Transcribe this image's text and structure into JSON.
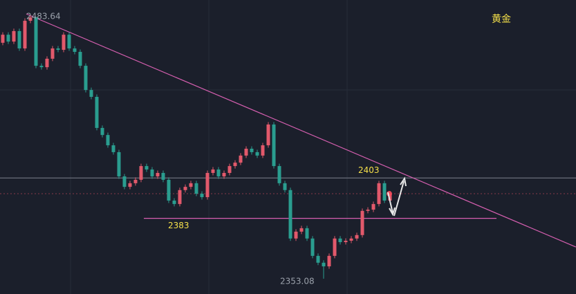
{
  "chart_data": {
    "type": "candlestick",
    "title": "黄金",
    "up_color": "#e2596b",
    "down_color": "#2a9d8f",
    "ylim": [
      2345.5,
      2491.2
    ],
    "open": [
      2470.0,
      2474.0,
      2470.6,
      2475.8,
      2467.2,
      2480.9,
      2482.6,
      2458.6,
      2457.9,
      2462.1,
      2467.2,
      2466.5,
      2474.0,
      2467.2,
      2465.5,
      2458.6,
      2446.6,
      2443.2,
      2427.8,
      2424.3,
      2419.2,
      2415.8,
      2403.8,
      2398.6,
      2400.4,
      2402.1,
      2408.9,
      2407.2,
      2403.8,
      2405.5,
      2402.1,
      2391.8,
      2390.1,
      2397.0,
      2398.6,
      2400.4,
      2395.2,
      2393.5,
      2405.5,
      2407.2,
      2403.8,
      2405.5,
      2408.9,
      2410.6,
      2414.1,
      2417.5,
      2415.8,
      2414.1,
      2419.2,
      2429.5,
      2408.9,
      2400.4,
      2397.0,
      2373.0,
      2376.4,
      2378.1,
      2373.0,
      2364.4,
      2361.0,
      2359.2,
      2364.4,
      2373.0,
      2371.2,
      2371.9,
      2373.0,
      2374.7,
      2386.7,
      2387.3,
      2390.1,
      2400.4,
      2391.8
    ],
    "high": [
      2475.2,
      2475.2,
      2477.0,
      2477.0,
      2482.1,
      2483.64,
      2483.0,
      2459.8,
      2463.3,
      2468.4,
      2468.4,
      2475.2,
      2475.2,
      2468.4,
      2466.7,
      2459.8,
      2447.8,
      2444.4,
      2429.0,
      2425.5,
      2420.4,
      2417.0,
      2405.0,
      2401.6,
      2403.3,
      2410.1,
      2410.1,
      2408.4,
      2406.7,
      2406.7,
      2403.3,
      2393.0,
      2398.2,
      2399.8,
      2401.6,
      2401.6,
      2396.4,
      2406.7,
      2408.4,
      2408.4,
      2406.7,
      2410.1,
      2411.8,
      2415.3,
      2418.7,
      2418.7,
      2417.0,
      2420.4,
      2430.7,
      2430.7,
      2410.1,
      2401.6,
      2398.2,
      2377.6,
      2379.3,
      2379.3,
      2374.2,
      2365.6,
      2362.2,
      2365.6,
      2374.2,
      2374.2,
      2373.1,
      2374.2,
      2375.9,
      2387.9,
      2388.5,
      2391.3,
      2401.6,
      2401.6,
      2396.4
    ],
    "low": [
      2468.8,
      2469.4,
      2469.4,
      2466.0,
      2466.0,
      2479.7,
      2457.4,
      2456.7,
      2456.7,
      2460.9,
      2465.3,
      2465.3,
      2466.0,
      2464.3,
      2457.4,
      2445.4,
      2442.0,
      2426.6,
      2423.1,
      2418.0,
      2414.6,
      2402.6,
      2397.4,
      2397.4,
      2399.2,
      2400.9,
      2406.0,
      2402.6,
      2402.6,
      2400.9,
      2390.6,
      2388.9,
      2388.9,
      2395.8,
      2397.4,
      2394.0,
      2392.3,
      2392.3,
      2404.3,
      2402.6,
      2402.6,
      2404.3,
      2407.7,
      2409.4,
      2412.9,
      2414.6,
      2412.9,
      2412.9,
      2418.0,
      2407.7,
      2399.2,
      2395.8,
      2371.8,
      2371.8,
      2375.2,
      2371.8,
      2363.2,
      2359.8,
      2353.08,
      2358.0,
      2363.2,
      2370.0,
      2370.0,
      2370.7,
      2371.8,
      2373.5,
      2385.5,
      2386.1,
      2388.9,
      2390.6,
      2390.6
    ],
    "close": [
      2474.0,
      2470.6,
      2475.8,
      2467.2,
      2480.9,
      2482.6,
      2458.6,
      2457.9,
      2462.1,
      2467.2,
      2466.5,
      2474.0,
      2467.2,
      2465.5,
      2458.6,
      2446.6,
      2443.2,
      2427.8,
      2424.3,
      2419.2,
      2415.8,
      2403.8,
      2398.6,
      2400.4,
      2402.1,
      2408.9,
      2407.2,
      2403.8,
      2405.5,
      2402.1,
      2391.8,
      2390.1,
      2397.0,
      2398.6,
      2400.4,
      2395.2,
      2393.5,
      2405.5,
      2407.2,
      2403.8,
      2405.5,
      2408.9,
      2410.6,
      2414.1,
      2417.5,
      2415.8,
      2414.1,
      2419.2,
      2429.5,
      2408.9,
      2400.4,
      2397.0,
      2373.0,
      2376.4,
      2378.1,
      2373.0,
      2364.4,
      2361.0,
      2359.2,
      2364.4,
      2373.0,
      2371.2,
      2371.9,
      2373.0,
      2374.7,
      2386.7,
      2387.3,
      2390.1,
      2400.4,
      2391.8,
      2395.2
    ],
    "resistance_line": {
      "x": [
        4.25,
        103.6
      ],
      "y": [
        2484.3,
        2368.8
      ],
      "color": "#d65fb0"
    },
    "support_line": {
      "x": [
        25.5,
        89.25
      ],
      "y": 2383,
      "color": "#d65fb0"
    },
    "level_line": 2403,
    "current_price": 2395.2,
    "level_labels": [
      {
        "value": 2483.64,
        "label": "2483.64"
      },
      {
        "value": 2353.08,
        "label": "2353.08"
      },
      {
        "value": 2403,
        "label": "2403"
      },
      {
        "value": 2383,
        "label": "2383"
      }
    ]
  }
}
